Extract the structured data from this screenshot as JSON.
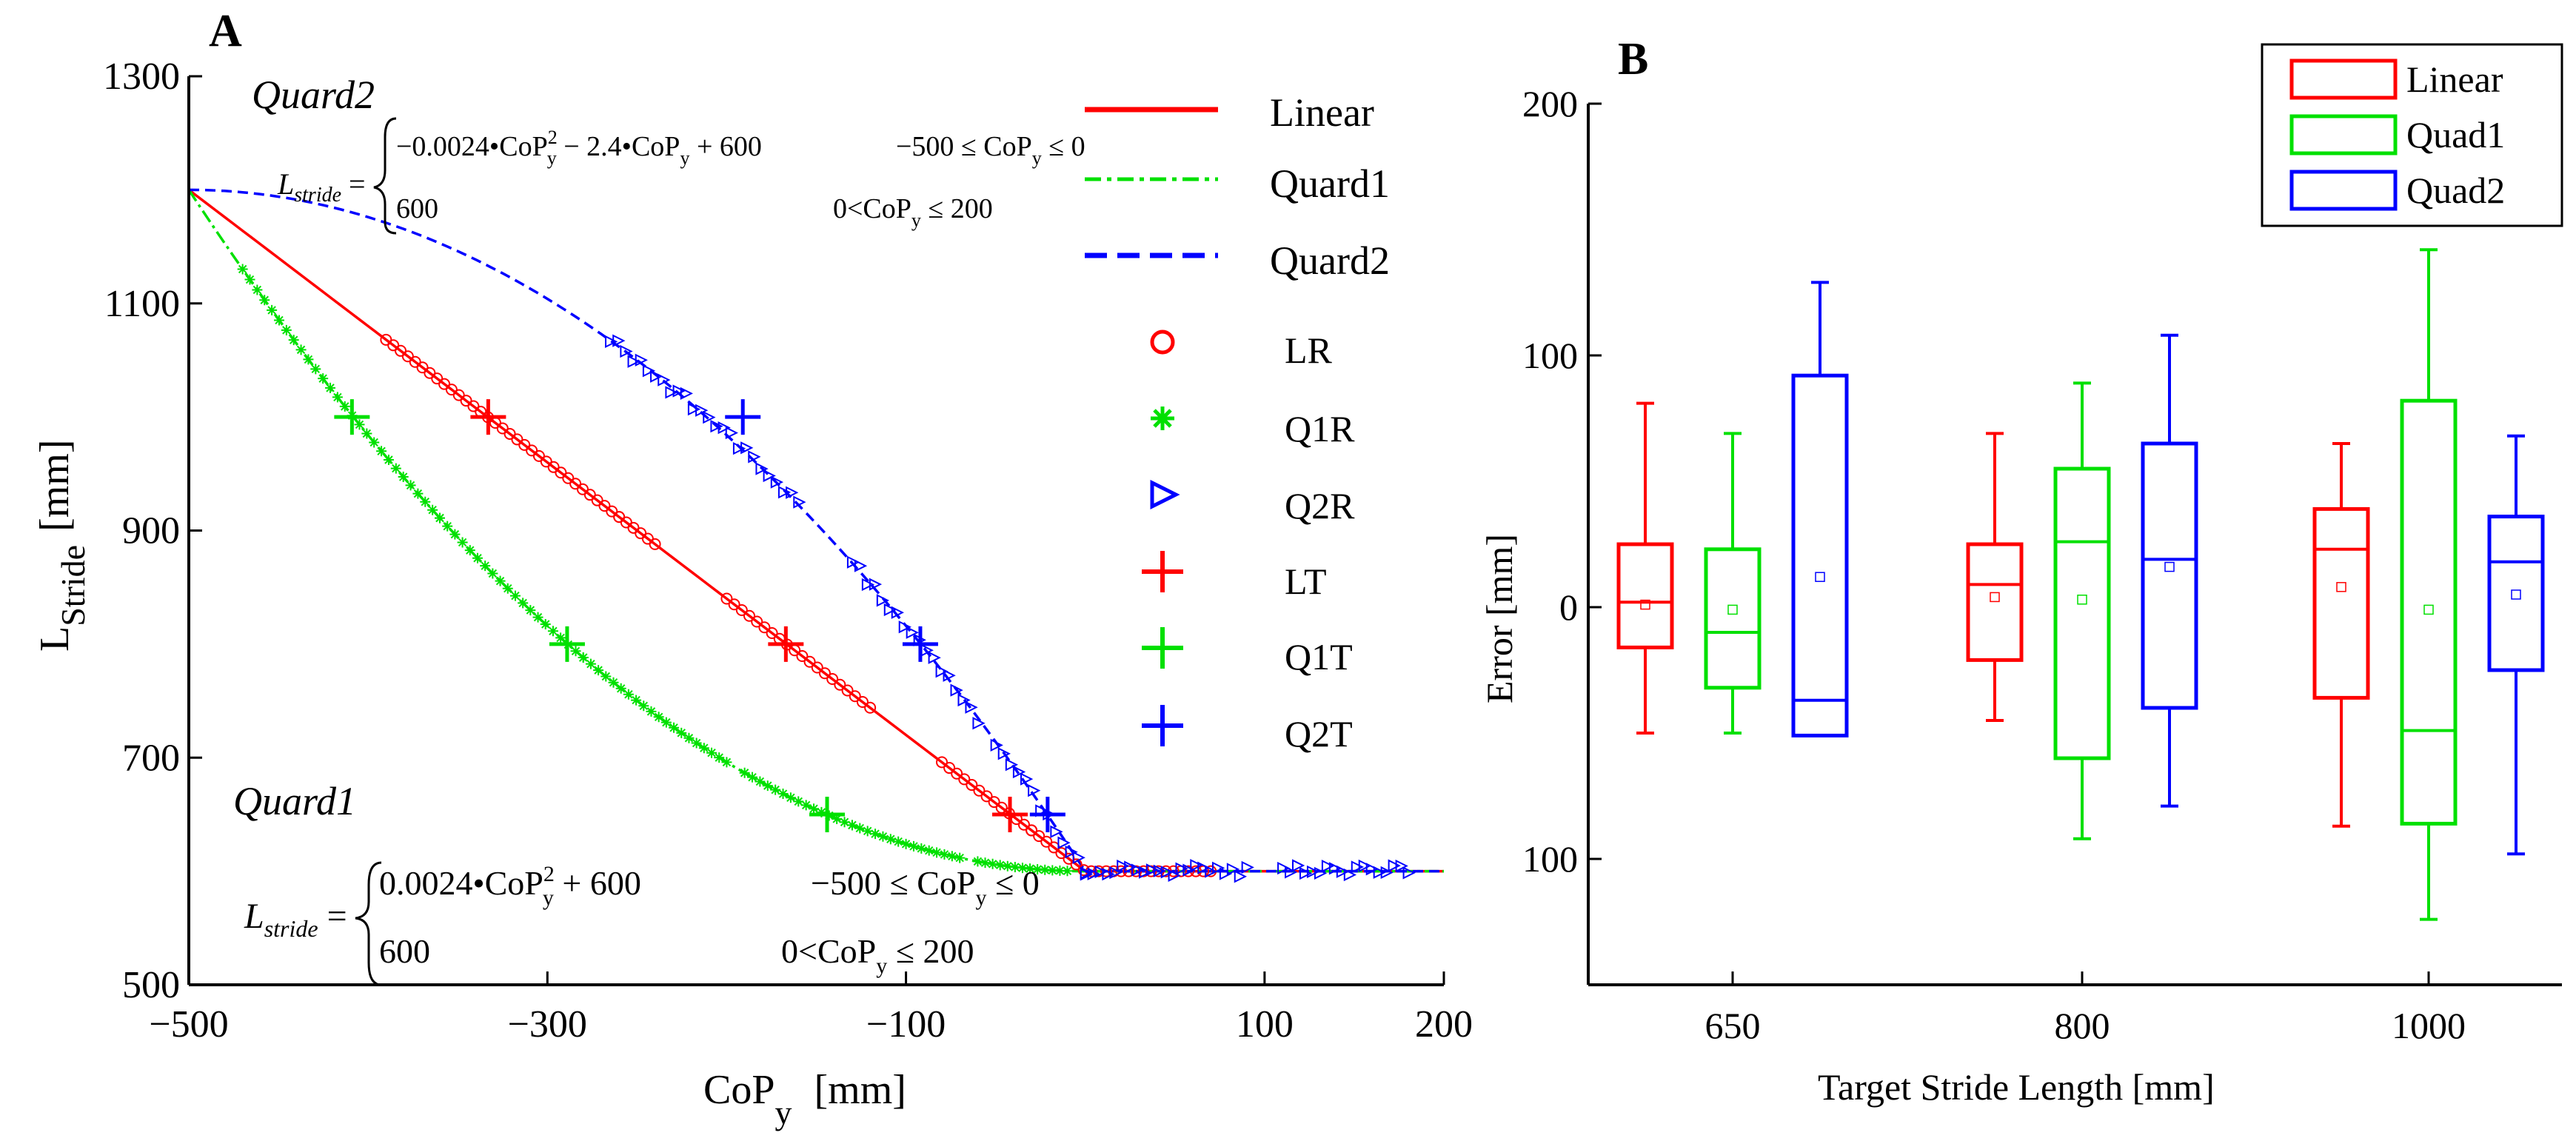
{
  "panel_labels": {
    "a": "A",
    "b": "B"
  },
  "chart_data": [
    {
      "type": "line",
      "panel": "A",
      "xlabel_main": "CoP",
      "xlabel_sub": "y",
      "xlabel_unit": "[mm]",
      "ylabel_main": "L",
      "ylabel_sub": "Stride",
      "ylabel_unit": "[mm]",
      "xlim": [
        -500,
        200
      ],
      "ylim": [
        500,
        1300
      ],
      "xticks": [
        -500,
        -300,
        -100,
        100,
        200
      ],
      "xtick_labels": [
        "−500",
        "−300",
        "−100",
        "100",
        "200"
      ],
      "yticks": [
        500,
        700,
        900,
        1100,
        1300
      ],
      "ytick_labels": [
        "500",
        "700",
        "900",
        "1100",
        "1300"
      ],
      "annotations": {
        "quard2_title": "Quard2",
        "quard1_title": "Quard1",
        "lstride": "L",
        "lstride_sub": "stride",
        "q2_eq1": "−0.0024•CoP",
        "q2_eq1_sup": "2",
        "q2_eq1_sub": "y",
        "q2_eq1_rest": " − 2.4•CoP",
        "q2_eq1_rest_sub": "y",
        "q2_eq1_end": " + 600",
        "q2_cond1": "−500 ≤ CoP",
        "q2_cond1_sub": "y",
        "q2_cond1_end": " ≤ 0",
        "q2_eq2": "600",
        "q2_cond2": "0<CoP",
        "q2_cond2_sub": "y",
        "q2_cond2_end": " ≤ 200",
        "q1_eq1": "0.0024•CoP",
        "q1_eq1_sup": "2",
        "q1_eq1_sub": "y",
        "q1_eq1_end": " + 600",
        "q1_cond1": "−500 ≤ CoP",
        "q1_cond1_sub": "y",
        "q1_cond1_end": " ≤ 0",
        "q1_eq2": "600",
        "q1_cond2": "0<CoP",
        "q1_cond2_sub": "y",
        "q1_cond2_end": " ≤ 200"
      },
      "legend": [
        {
          "label": "Linear",
          "style": "solid-line",
          "color": "#ff0000"
        },
        {
          "label": "Quard1",
          "style": "dashdot-line",
          "color": "#00e000"
        },
        {
          "label": "Quard2",
          "style": "dashed-line",
          "color": "#0000ff"
        },
        {
          "label": "LR",
          "style": "circle",
          "color": "#ff0000"
        },
        {
          "label": "Q1R",
          "style": "asterisk",
          "color": "#00e000"
        },
        {
          "label": "Q2R",
          "style": "triangle",
          "color": "#0000ff"
        },
        {
          "label": "LT",
          "style": "plus",
          "color": "#ff0000"
        },
        {
          "label": "Q1T",
          "style": "plus",
          "color": "#00e000"
        },
        {
          "label": "Q2T",
          "style": "plus",
          "color": "#0000ff"
        }
      ],
      "series": [
        {
          "name": "Linear",
          "equation": "L = -1.2*CoPy + 600 (CoPy<=0); 600 (CoPy>0)",
          "color": "#ff0000",
          "x": [
            -500,
            -400,
            -300,
            -200,
            -100,
            0,
            200
          ],
          "y": [
            1200,
            1080,
            960,
            840,
            720,
            600,
            600
          ]
        },
        {
          "name": "Quard1",
          "equation": "L = 0.0024*CoPy^2 + 600 (CoPy<=0); 600 (CoPy>0)",
          "color": "#00e000",
          "x": [
            -500,
            -400,
            -300,
            -200,
            -100,
            0,
            200
          ],
          "y": [
            1200,
            984,
            816,
            696,
            624,
            600,
            600
          ]
        },
        {
          "name": "Quard2",
          "equation": "L = -0.0024*CoPy^2 - 2.4*CoPy + 600 (CoPy<=0); 600 (CoPy>0)",
          "color": "#0000ff",
          "x": [
            -500,
            -400,
            -300,
            -200,
            -100,
            0,
            200
          ],
          "y": [
            1200,
            1176,
            1104,
            984,
            816,
            600,
            600
          ]
        }
      ],
      "target_points": [
        {
          "name": "LT",
          "color": "#ff0000",
          "points": [
            [
              -333,
              1000
            ],
            [
              -167,
              800
            ],
            [
              -42,
              650
            ]
          ]
        },
        {
          "name": "Q1T",
          "color": "#00e000",
          "points": [
            [
              -409,
              1000
            ],
            [
              -289,
              800
            ],
            [
              -144,
              650
            ]
          ]
        },
        {
          "name": "Q2T",
          "color": "#0000ff",
          "points": [
            [
              -191,
              1000
            ],
            [
              -92,
              800
            ],
            [
              -21,
              650
            ]
          ]
        }
      ],
      "recorded_ranges": [
        {
          "name": "LR",
          "color": "#ff0000",
          "x_ranges": [
            [
              -390,
              -260
            ],
            [
              -260,
              -240
            ],
            [
              -200,
              -120
            ],
            [
              -80,
              -30
            ],
            [
              -30,
              70
            ]
          ]
        },
        {
          "name": "Q1R",
          "color": "#00e000",
          "x_ranges": [
            [
              -470,
              -360
            ],
            [
              -360,
              -280
            ],
            [
              -280,
              -200
            ],
            [
              -190,
              -130
            ],
            [
              -130,
              -70
            ],
            [
              -60,
              -10
            ]
          ]
        },
        {
          "name": "Q2R",
          "color": "#0000ff",
          "x_ranges": [
            [
              -265,
              -160
            ],
            [
              -130,
              -60
            ],
            [
              -50,
              0
            ],
            [
              0,
              90
            ],
            [
              110,
              180
            ]
          ]
        }
      ]
    },
    {
      "type": "box",
      "panel": "B",
      "xlabel": "Target Stride Length [mm]",
      "ylabel": "Error [mm]",
      "ylim": [
        -150,
        200
      ],
      "yticks": [
        200,
        100,
        0,
        -100
      ],
      "ytick_labels": [
        "200",
        "100",
        "0",
        "100"
      ],
      "categories": [
        "650",
        "800",
        "1000"
      ],
      "legend": [
        {
          "label": "Linear",
          "color": "#ff0000"
        },
        {
          "label": "Quad1",
          "color": "#00e000"
        },
        {
          "label": "Quad2",
          "color": "#0000ff"
        }
      ],
      "series": [
        {
          "name": "Linear",
          "color": "#ff0000",
          "boxes": [
            {
              "category": "650",
              "whisker_low": -50,
              "q1": -16,
              "median": 2,
              "q3": 25,
              "whisker_high": 81,
              "mean": 1
            },
            {
              "category": "800",
              "whisker_low": -45,
              "q1": -21,
              "median": 9,
              "q3": 25,
              "whisker_high": 69,
              "mean": 4
            },
            {
              "category": "1000",
              "whisker_low": -87,
              "q1": -36,
              "median": 23,
              "q3": 39,
              "whisker_high": 65,
              "mean": 8
            }
          ]
        },
        {
          "name": "Quad1",
          "color": "#00e000",
          "boxes": [
            {
              "category": "650",
              "whisker_low": -50,
              "q1": -32,
              "median": -10,
              "q3": 23,
              "whisker_high": 69,
              "mean": -1
            },
            {
              "category": "800",
              "whisker_low": -92,
              "q1": -60,
              "median": 26,
              "q3": 55,
              "whisker_high": 89,
              "mean": 3
            },
            {
              "category": "1000",
              "whisker_low": -124,
              "q1": -86,
              "median": -49,
              "q3": 82,
              "whisker_high": 142,
              "mean": -1
            }
          ]
        },
        {
          "name": "Quad2",
          "color": "#0000ff",
          "boxes": [
            {
              "category": "650",
              "whisker_low": -51,
              "q1": -51,
              "median": -37,
              "q3": 92,
              "whisker_high": 129,
              "mean": 12
            },
            {
              "category": "800",
              "whisker_low": -79,
              "q1": -40,
              "median": 19,
              "q3": 65,
              "whisker_high": 108,
              "mean": 16
            },
            {
              "category": "1000",
              "whisker_low": -98,
              "q1": -25,
              "median": 18,
              "q3": 36,
              "whisker_high": 68,
              "mean": 5
            }
          ]
        }
      ]
    }
  ]
}
